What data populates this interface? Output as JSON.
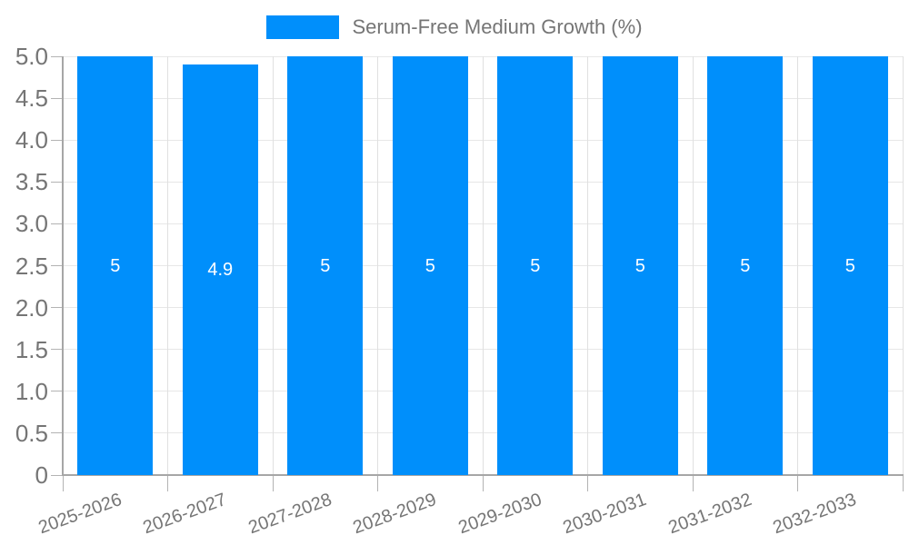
{
  "legend": {
    "label": "Serum-Free Medium Growth (%)"
  },
  "chart_data": {
    "type": "bar",
    "title": "",
    "xlabel": "",
    "ylabel": "",
    "categories": [
      "2025-2026",
      "2026-2027",
      "2027-2028",
      "2028-2029",
      "2029-2030",
      "2030-2031",
      "2031-2032",
      "2032-2033"
    ],
    "series": [
      {
        "name": "Serum-Free Medium Growth (%)",
        "values": [
          5,
          4.9,
          5,
          5,
          5,
          5,
          5,
          5
        ],
        "value_labels": [
          "5",
          "4.9",
          "5",
          "5",
          "5",
          "5",
          "5",
          "5"
        ]
      }
    ],
    "ylim": [
      0,
      5
    ],
    "yticks": {
      "values": [
        0,
        0.5,
        1,
        1.5,
        2,
        2.5,
        3,
        3.5,
        4,
        4.5,
        5
      ],
      "labels": [
        "0",
        "0.5",
        "1.0",
        "1.5",
        "2.0",
        "2.5",
        "3.0",
        "3.5",
        "4.0",
        "4.5",
        "5.0"
      ]
    },
    "grid": true,
    "legend_position": "top-center"
  },
  "colors": {
    "bar": "#008ffb",
    "axis_line": "#a6a6a6",
    "gridline": "#e7e7e7",
    "tick": "#b3b3b3",
    "axis_label": "#757575",
    "bar_label": "#ffffff",
    "background": "#ffffff"
  }
}
